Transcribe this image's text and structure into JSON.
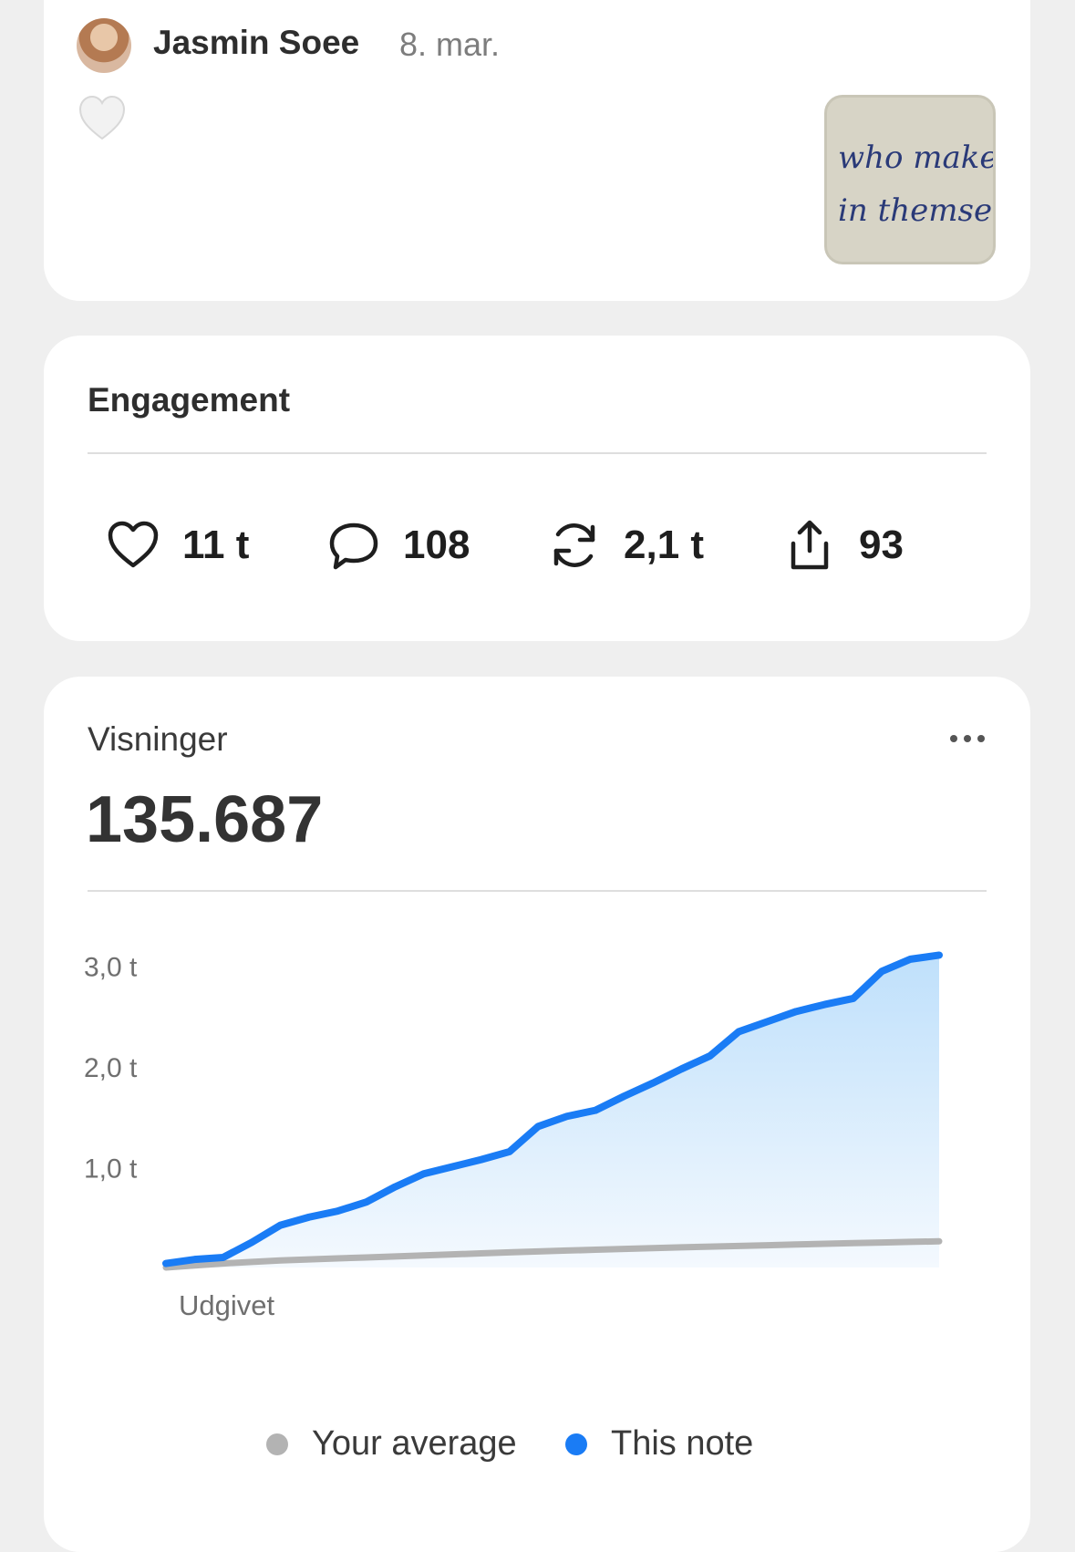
{
  "post": {
    "author": "Jasmin Soee",
    "date": "8. mar.",
    "thumbnail_lines": [
      "who makes",
      "in themselv"
    ]
  },
  "engagement": {
    "title": "Engagement",
    "stats": [
      {
        "icon": "heart-outline-icon",
        "value": "11 t"
      },
      {
        "icon": "comment-icon",
        "value": "108"
      },
      {
        "icon": "repost-icon",
        "value": "2,1 t"
      },
      {
        "icon": "share-icon",
        "value": "93"
      }
    ]
  },
  "views": {
    "label": "Visninger",
    "total": "135.687"
  },
  "chart_data": {
    "type": "area",
    "ytick_labels": [
      "3,0 t",
      "2,0 t",
      "1,0 t"
    ],
    "yticks": [
      3000,
      2000,
      1000
    ],
    "ylim": [
      0,
      3300
    ],
    "x_start_label": "Udgivet",
    "legend_position": "bottom",
    "colors": {
      "this_note": "#1a7cf5",
      "your_average": "#b3b3b3"
    },
    "series": [
      {
        "name": "This note",
        "values": [
          40,
          80,
          100,
          250,
          420,
          500,
          560,
          650,
          800,
          930,
          1000,
          1070,
          1150,
          1400,
          1500,
          1560,
          1700,
          1830,
          1970,
          2100,
          2340,
          2440,
          2540,
          2610,
          2670,
          2940,
          3060,
          3100
        ]
      },
      {
        "name": "Your average",
        "values": [
          0,
          20,
          40,
          55,
          70,
          80,
          90,
          100,
          110,
          120,
          130,
          140,
          150,
          160,
          168,
          176,
          184,
          192,
          200,
          207,
          214,
          221,
          228,
          235,
          242,
          248,
          254,
          260
        ]
      }
    ]
  }
}
